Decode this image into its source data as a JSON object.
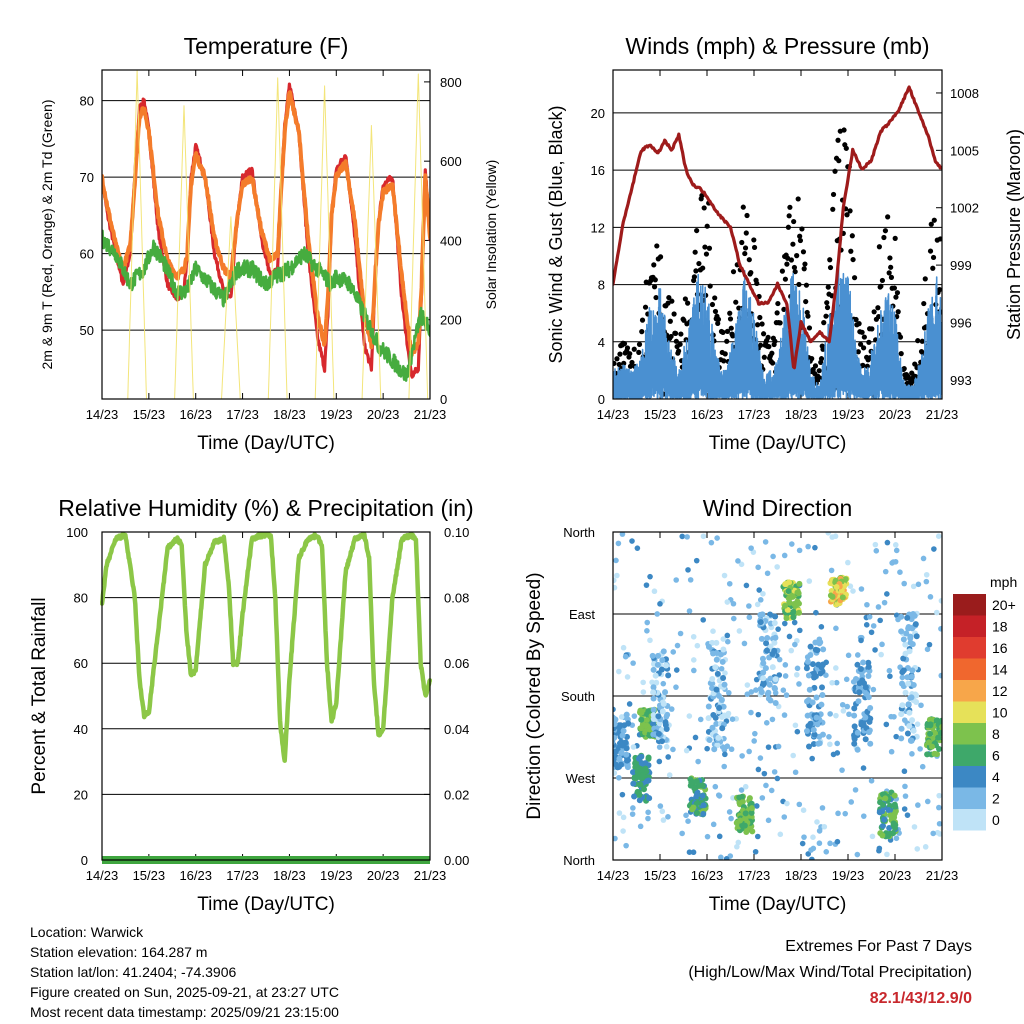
{
  "x_ticks": [
    "14/23",
    "15/23",
    "16/23",
    "17/23",
    "18/23",
    "19/23",
    "20/23",
    "21/23"
  ],
  "x_label": "Time (Day/UTC)",
  "colors": {
    "temp2m": "#d7282d",
    "temp9m": "#f47c2b",
    "dewpoint": "#46ac3f",
    "solar": "#f2e26c",
    "wind": "#4a90d1",
    "gust": "#000000",
    "pressure": "#9e1b1b",
    "humidity": "#8cc747",
    "precip": "#3fa63f"
  },
  "chart_data": [
    {
      "type": "line",
      "title": "Temperature (F)",
      "ylabel": "2m & 9m T (Red, Orange) & 2m Td (Green)",
      "y2label": "Solar Insolation (Yellow)",
      "xlabel": "Time (Day/UTC)",
      "ylim": [
        41,
        84
      ],
      "yticks": [
        50,
        60,
        70,
        80
      ],
      "y2lim": [
        0,
        830
      ],
      "y2ticks": [
        0,
        200,
        400,
        600,
        800
      ],
      "xlim": [
        0,
        7
      ],
      "series": [
        {
          "name": "2m T",
          "color": "#d7282d",
          "x": [
            0,
            0.12,
            0.3,
            0.45,
            0.6,
            0.72,
            0.8,
            0.9,
            1.0,
            1.2,
            1.4,
            1.6,
            1.75,
            1.82,
            1.9,
            2.0,
            2.2,
            2.4,
            2.6,
            2.75,
            2.82,
            2.9,
            3.0,
            3.2,
            3.4,
            3.6,
            3.75,
            3.82,
            3.9,
            4.0,
            4.2,
            4.4,
            4.6,
            4.75,
            4.82,
            4.9,
            5.0,
            5.2,
            5.4,
            5.6,
            5.75,
            5.82,
            5.9,
            6.0,
            6.2,
            6.4,
            6.6,
            6.75,
            6.82,
            6.9,
            7.0
          ],
          "y": [
            70,
            65,
            60,
            56,
            60,
            72,
            79,
            80,
            76,
            63,
            56,
            54,
            55,
            60,
            70,
            74,
            70,
            60,
            55,
            54,
            60,
            65,
            70,
            71,
            62,
            57,
            58,
            68,
            77,
            82,
            76,
            60,
            49,
            45,
            52,
            65,
            71,
            73,
            62,
            48,
            45,
            55,
            64,
            69,
            70,
            54,
            44,
            45,
            55,
            71,
            62
          ]
        },
        {
          "name": "9m T",
          "color": "#f47c2b",
          "x": [
            0,
            0.12,
            0.3,
            0.45,
            0.6,
            0.72,
            0.8,
            0.9,
            1.0,
            1.2,
            1.4,
            1.6,
            1.75,
            1.82,
            1.9,
            2.0,
            2.2,
            2.4,
            2.6,
            2.75,
            2.82,
            2.9,
            3.0,
            3.2,
            3.4,
            3.6,
            3.75,
            3.82,
            3.9,
            4.0,
            4.2,
            4.4,
            4.6,
            4.75,
            4.82,
            4.9,
            5.0,
            5.2,
            5.4,
            5.6,
            5.75,
            5.82,
            5.9,
            6.0,
            6.2,
            6.4,
            6.6,
            6.75,
            6.82,
            6.9,
            7.0
          ],
          "y": [
            70,
            66,
            61,
            58,
            61,
            71,
            78,
            79,
            76,
            65,
            59,
            57,
            58,
            60,
            69,
            73,
            70,
            62,
            58,
            57,
            61,
            65,
            69,
            70,
            63,
            59,
            60,
            68,
            76,
            81,
            76,
            62,
            52,
            48,
            54,
            65,
            70,
            72,
            64,
            52,
            48,
            56,
            64,
            68,
            69,
            57,
            47,
            48,
            56,
            70,
            62
          ]
        },
        {
          "name": "2m Td",
          "color": "#46ac3f",
          "x": [
            0,
            0.3,
            0.6,
            0.9,
            1.1,
            1.3,
            1.6,
            1.8,
            2.0,
            2.3,
            2.6,
            2.9,
            3.2,
            3.5,
            3.7,
            4.0,
            4.3,
            4.6,
            4.9,
            5.0,
            5.3,
            5.6,
            5.9,
            6.2,
            6.5,
            6.8,
            7.0
          ],
          "y": [
            62,
            60,
            56,
            58,
            61,
            59,
            55,
            55,
            58,
            56,
            54,
            58,
            58,
            56,
            57,
            58,
            60,
            58,
            56,
            57,
            56,
            52,
            48,
            46,
            44,
            52,
            50
          ]
        },
        {
          "name": "Solar",
          "color": "#f2e26c",
          "axis": "y2",
          "x": [
            0,
            0.55,
            0.75,
            0.95,
            1.15,
            1.35,
            1.55,
            1.75,
            1.95,
            2.15,
            2.35,
            2.55,
            2.75,
            2.95,
            3.15,
            3.35,
            3.55,
            3.75,
            3.95,
            4.15,
            4.35,
            4.55,
            4.75,
            4.95,
            5.15,
            5.35,
            5.55,
            5.75,
            5.95,
            6.15,
            6.35,
            6.55,
            6.75,
            6.95,
            7.0
          ],
          "y": [
            0,
            0,
            830,
            0,
            0,
            0,
            0,
            740,
            0,
            0,
            0,
            0,
            460,
            0,
            0,
            0,
            0,
            810,
            0,
            0,
            0,
            0,
            790,
            0,
            0,
            0,
            0,
            690,
            0,
            0,
            0,
            0,
            820,
            0,
            0
          ]
        }
      ]
    },
    {
      "type": "scatter",
      "title": "Winds (mph) & Pressure (mb)",
      "ylabel": "Sonic Wind & Gust (Blue, Black)",
      "y2label": "Station Pressure (Maroon)",
      "xlabel": "Time (Day/UTC)",
      "ylim": [
        0,
        23
      ],
      "yticks": [
        0,
        4,
        8,
        12,
        16,
        20
      ],
      "y2lim": [
        992,
        1009.2
      ],
      "y2ticks": [
        993,
        996,
        999,
        1002,
        1005,
        1008
      ],
      "xlim": [
        0,
        7
      ],
      "series": [
        {
          "name": "Pressure",
          "color": "#9e1b1b",
          "axis": "y2",
          "x": [
            0,
            0.2,
            0.4,
            0.6,
            0.8,
            0.95,
            1.1,
            1.25,
            1.4,
            1.55,
            1.7,
            1.85,
            2.0,
            2.15,
            2.3,
            2.5,
            2.7,
            2.9,
            3.1,
            3.3,
            3.5,
            3.7,
            3.85,
            4.0,
            4.2,
            4.4,
            4.6,
            4.75,
            4.9,
            5.1,
            5.3,
            5.5,
            5.7,
            5.9,
            6.1,
            6.3,
            6.5,
            6.7,
            6.85,
            7.0
          ],
          "y": [
            998,
            1001,
            1003,
            1005,
            1005.3,
            1004.8,
            1005.5,
            1005,
            1005.8,
            1004,
            1003.2,
            1003,
            1002.6,
            1002,
            1001.5,
            1001,
            999,
            998,
            997,
            997,
            998,
            997,
            993.5,
            996,
            995,
            995.5,
            995,
            998,
            1002,
            1005,
            1004,
            1004.5,
            1006,
            1006.5,
            1007.2,
            1008.3,
            1007,
            1005.8,
            1004.5,
            1004
          ]
        },
        {
          "name": "Wind envelope",
          "color": "#4a90d1",
          "x": [
            0,
            0.2,
            0.4,
            0.6,
            0.8,
            1.0,
            1.2,
            1.4,
            1.6,
            1.8,
            2.0,
            2.2,
            2.4,
            2.6,
            2.8,
            3.0,
            3.2,
            3.4,
            3.6,
            3.8,
            4.0,
            4.2,
            4.4,
            4.6,
            4.8,
            5.0,
            5.2,
            5.4,
            5.6,
            5.8,
            6.0,
            6.2,
            6.4,
            6.6,
            6.8,
            7.0
          ],
          "y": [
            2,
            2.5,
            2,
            3,
            7,
            8,
            4,
            2,
            5,
            9,
            8,
            3,
            2,
            5,
            9,
            6,
            2,
            2,
            5,
            9,
            8,
            2,
            1,
            6,
            10,
            9,
            3,
            2,
            5,
            8,
            6,
            1,
            1,
            4,
            9,
            8
          ]
        },
        {
          "name": "Gust envelope",
          "color": "#000000",
          "x": [
            0,
            0.2,
            0.4,
            0.6,
            0.8,
            1.0,
            1.2,
            1.4,
            1.6,
            1.8,
            2.0,
            2.2,
            2.4,
            2.6,
            2.8,
            3.0,
            3.2,
            3.4,
            3.6,
            3.8,
            4.0,
            4.2,
            4.4,
            4.6,
            4.8,
            5.0,
            5.2,
            5.4,
            5.6,
            5.8,
            6.0,
            6.2,
            6.4,
            6.6,
            6.8,
            7.0
          ],
          "y": [
            3,
            4,
            3.5,
            5,
            11,
            12,
            8,
            5,
            8,
            14,
            15,
            8,
            4,
            10,
            14,
            12,
            5,
            4,
            9,
            15,
            14,
            4,
            2,
            10,
            21,
            18,
            6,
            4,
            9,
            14,
            12,
            2,
            2,
            7,
            14,
            13
          ]
        }
      ]
    },
    {
      "type": "line",
      "title": "Relative Humidity (%) & Precipitation (in)",
      "ylabel": "Percent & Total Rainfall",
      "xlabel": "Time (Day/UTC)",
      "ylim": [
        0,
        100
      ],
      "yticks": [
        0,
        20,
        40,
        60,
        80,
        100
      ],
      "y2lim": [
        0,
        0.1
      ],
      "y2ticks": [
        "0.00",
        "0.02",
        "0.04",
        "0.06",
        "0.08",
        "0.10"
      ],
      "xlim": [
        0,
        7
      ],
      "series": [
        {
          "name": "RH",
          "color": "#8cc747",
          "x": [
            0,
            0.1,
            0.3,
            0.5,
            0.7,
            0.8,
            0.9,
            1.0,
            1.2,
            1.4,
            1.6,
            1.7,
            1.8,
            1.9,
            2.0,
            2.2,
            2.4,
            2.6,
            2.7,
            2.8,
            2.9,
            3.0,
            3.2,
            3.4,
            3.6,
            3.7,
            3.8,
            3.9,
            4.0,
            4.2,
            4.4,
            4.6,
            4.7,
            4.8,
            4.9,
            5.0,
            5.2,
            5.4,
            5.6,
            5.7,
            5.8,
            5.9,
            6.0,
            6.2,
            6.4,
            6.6,
            6.7,
            6.8,
            6.9,
            7.0
          ],
          "y": [
            78,
            90,
            98,
            99,
            80,
            55,
            44,
            45,
            70,
            95,
            98,
            96,
            70,
            56,
            58,
            90,
            97,
            98,
            85,
            60,
            60,
            75,
            98,
            99,
            99,
            80,
            42,
            30,
            55,
            92,
            98,
            99,
            95,
            60,
            42,
            48,
            88,
            98,
            99,
            92,
            55,
            38,
            40,
            80,
            98,
            99,
            98,
            60,
            50,
            55
          ]
        },
        {
          "name": "Precipitation",
          "color": "#3fa63f",
          "axis": "y2",
          "x": [
            0,
            7
          ],
          "y": [
            0,
            0
          ]
        }
      ]
    },
    {
      "type": "scatter",
      "title": "Wind Direction",
      "ylabel": "Direction (Colored By Speed)",
      "xlabel": "Time (Day/UTC)",
      "yticks": [
        "North",
        "West",
        "South",
        "East",
        "North"
      ],
      "ylim": [
        0,
        360
      ],
      "xlim": [
        0,
        7
      ],
      "legend_unit": "mph",
      "legend": [
        {
          "label": "20+",
          "color": "#9a1c1c"
        },
        {
          "label": "18",
          "color": "#c52127"
        },
        {
          "label": "16",
          "color": "#e03c2f"
        },
        {
          "label": "14",
          "color": "#f0672e"
        },
        {
          "label": "12",
          "color": "#f7a64a"
        },
        {
          "label": "10",
          "color": "#e6e159"
        },
        {
          "label": "8",
          "color": "#7dc24d"
        },
        {
          "label": "6",
          "color": "#3ea86a"
        },
        {
          "label": "4",
          "color": "#3c88c4"
        },
        {
          "label": "2",
          "color": "#7ab8e6"
        },
        {
          "label": "0",
          "color": "#bfe3f7"
        }
      ],
      "clusters": [
        {
          "x": 0.15,
          "dir": 130,
          "spread": 60,
          "speed": 3
        },
        {
          "x": 0.6,
          "dir": 90,
          "spread": 50,
          "speed": 5
        },
        {
          "x": 0.75,
          "dir": 150,
          "spread": 30,
          "speed": 7
        },
        {
          "x": 1.0,
          "dir": 180,
          "spread": 100,
          "speed": 2
        },
        {
          "x": 1.8,
          "dir": 70,
          "spread": 40,
          "speed": 6
        },
        {
          "x": 2.2,
          "dir": 180,
          "spread": 120,
          "speed": 2
        },
        {
          "x": 2.8,
          "dir": 50,
          "spread": 40,
          "speed": 7
        },
        {
          "x": 3.3,
          "dir": 220,
          "spread": 100,
          "speed": 2
        },
        {
          "x": 3.8,
          "dir": 285,
          "spread": 40,
          "speed": 8
        },
        {
          "x": 4.3,
          "dir": 180,
          "spread": 120,
          "speed": 3
        },
        {
          "x": 4.8,
          "dir": 295,
          "spread": 30,
          "speed": 10
        },
        {
          "x": 5.3,
          "dir": 170,
          "spread": 100,
          "speed": 3
        },
        {
          "x": 5.85,
          "dir": 50,
          "spread": 50,
          "speed": 6
        },
        {
          "x": 6.3,
          "dir": 200,
          "spread": 150,
          "speed": 2
        },
        {
          "x": 6.85,
          "dir": 135,
          "spread": 40,
          "speed": 7
        }
      ]
    }
  ],
  "info": {
    "location": "Location: Warwick",
    "elevation": "Station elevation: 164.287 m",
    "latlon": "Station lat/lon: 41.2404; -74.3906",
    "created": "Figure created on Sun, 2025-09-21, at 23:27 UTC",
    "recent": "Most recent data timestamp: 2025/09/21 23:15:00"
  },
  "extremes": {
    "title": "Extremes For Past 7 Days",
    "subtitle": "(High/Low/Max Wind/Total Precipitation)",
    "values": "82.1/43/12.9/0"
  }
}
